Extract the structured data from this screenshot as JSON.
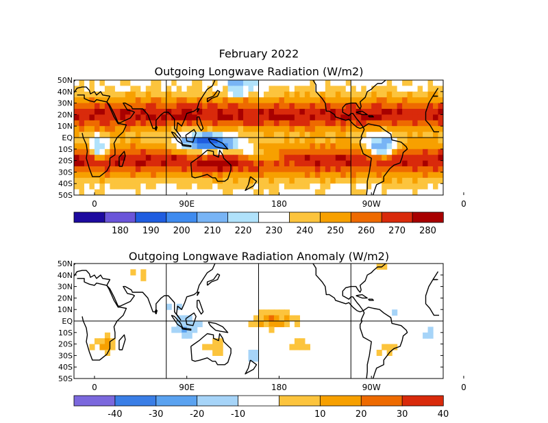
{
  "title": "February 2022",
  "chart_data": [
    {
      "type": "heatmap",
      "title": "Outgoing Longwave Radiation (W/m2)",
      "xlabel": "",
      "ylabel": "",
      "x_ticks": [
        "0",
        "90E",
        "180",
        "90W",
        "0"
      ],
      "y_ticks": [
        "50N",
        "40N",
        "30N",
        "20N",
        "10N",
        "EQ",
        "10S",
        "20S",
        "30S",
        "40S",
        "50S"
      ],
      "colorbar": {
        "labels": [
          "180",
          "190",
          "200",
          "210",
          "220",
          "230",
          "240",
          "250",
          "260",
          "270",
          "280"
        ],
        "colors": [
          "#1d0a9f",
          "#6a55d9",
          "#1f5de0",
          "#3f8bef",
          "#78b4f5",
          "#b0e2fb",
          "#ffffff",
          "#fcc43d",
          "#f7a000",
          "#ee6a00",
          "#d92a0b",
          "#a80000"
        ]
      }
    },
    {
      "type": "heatmap",
      "title": "Outgoing Longwave Radiation Anomaly (W/m2)",
      "xlabel": "",
      "ylabel": "",
      "x_ticks": [
        "0",
        "90E",
        "180",
        "90W",
        "0"
      ],
      "y_ticks": [
        "50N",
        "40N",
        "30N",
        "20N",
        "10N",
        "EQ",
        "10S",
        "20S",
        "30S",
        "40S",
        "50S"
      ],
      "colorbar": {
        "labels": [
          "-40",
          "-30",
          "-20",
          "-10",
          "10",
          "20",
          "30",
          "40"
        ],
        "colors": [
          "#7b68dd",
          "#3a7ee6",
          "#5aa2f0",
          "#a6d4f8",
          "#ffffff",
          "#fcc43d",
          "#f7a000",
          "#ee6a00",
          "#d92a0b"
        ]
      }
    }
  ]
}
